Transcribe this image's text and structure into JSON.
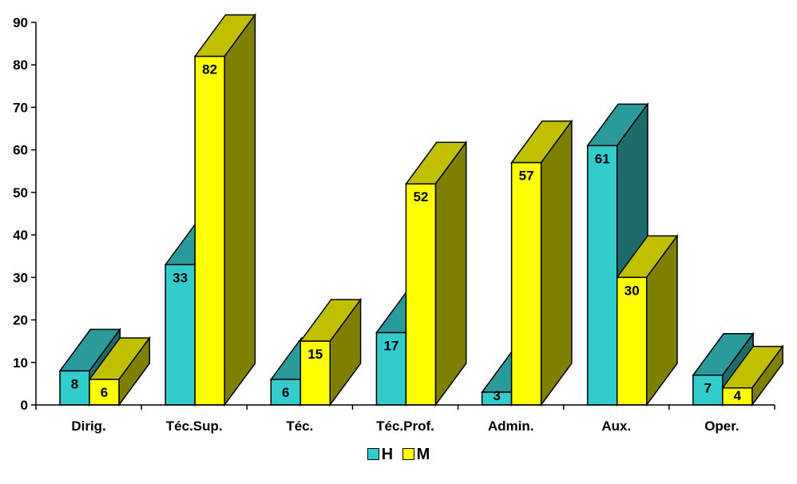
{
  "chart_data": {
    "type": "bar",
    "categories": [
      "Dirig.",
      "Téc.Sup.",
      "Téc.",
      "Téc.Prof.",
      "Admin.",
      "Aux.",
      "Oper."
    ],
    "series": [
      {
        "name": "H",
        "values": [
          8,
          33,
          6,
          17,
          3,
          61,
          7
        ],
        "color": "#33CCCC",
        "top_color": "#2A9A9A",
        "side_color": "#1E6B6B"
      },
      {
        "name": "M",
        "values": [
          6,
          82,
          15,
          52,
          57,
          30,
          4
        ],
        "color": "#FFFF00",
        "top_color": "#C0C000",
        "side_color": "#808000"
      }
    ],
    "yticks": [
      "0",
      "10",
      "20",
      "30",
      "40",
      "50",
      "60",
      "70",
      "80",
      "90"
    ],
    "ylim": [
      0,
      90
    ],
    "data_labels": true,
    "style": "3d-clustered-column",
    "grid": false,
    "legend_position": "bottom"
  }
}
